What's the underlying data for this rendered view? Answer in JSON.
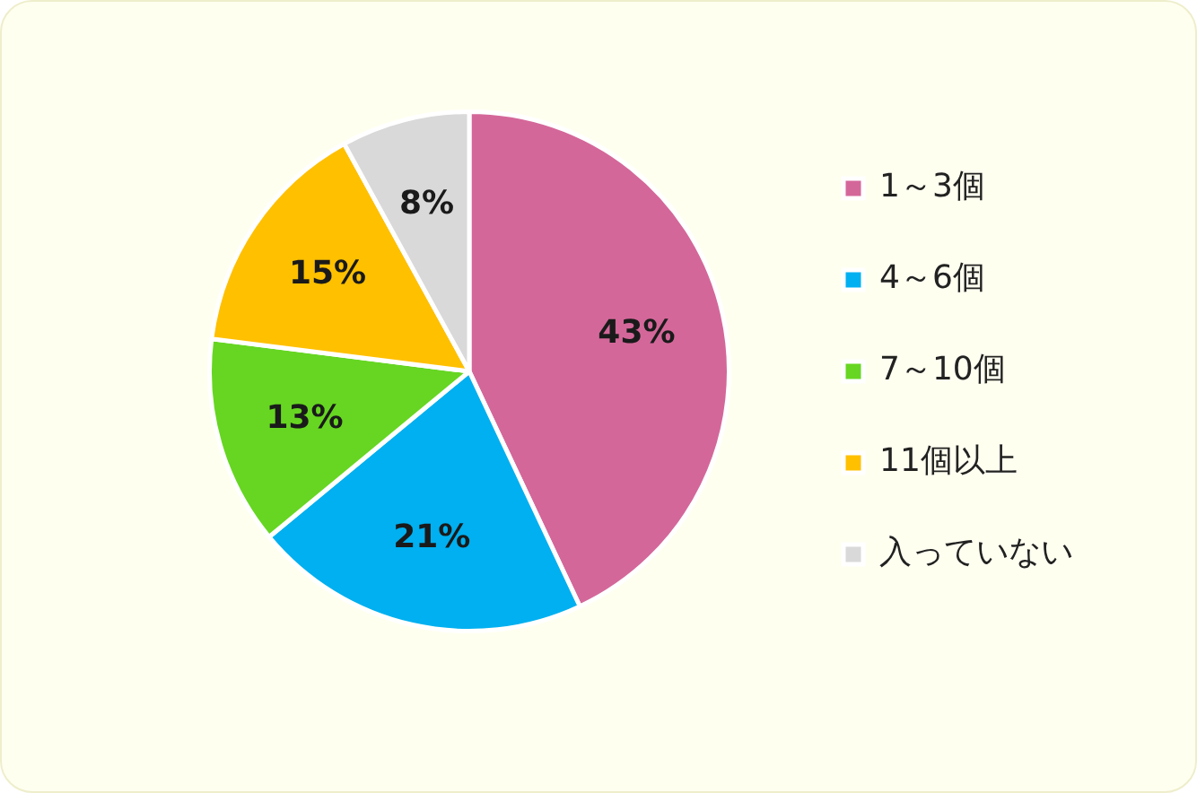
{
  "chart_data": {
    "type": "pie",
    "categories": [
      "1～3個",
      "4～6個",
      "7～10個",
      "11個以上",
      "入っていない"
    ],
    "values": [
      43,
      21,
      13,
      15,
      8
    ],
    "colors": [
      "#d4679a",
      "#00b0f0",
      "#66d622",
      "#ffc000",
      "#d9d9d9"
    ],
    "value_labels": [
      "43%",
      "21%",
      "13%",
      "15%",
      "8%"
    ],
    "legend": "right"
  }
}
